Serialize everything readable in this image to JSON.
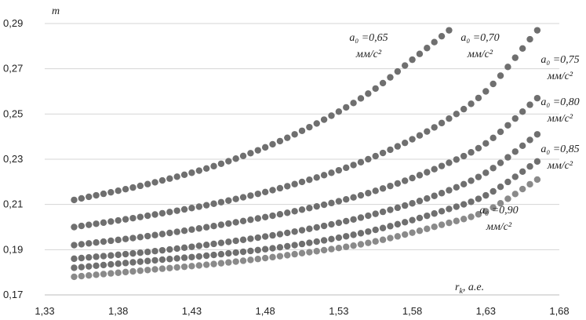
{
  "chart_data": {
    "type": "scatter",
    "title": "",
    "ylabel": "m",
    "xlabel": "r",
    "xlabel_sub": "k",
    "xlabel_suffix": ", a.e.",
    "xlim": [
      1.33,
      1.68
    ],
    "ylim": [
      0.17,
      0.29
    ],
    "x_ticks": [
      "1,33",
      "1,38",
      "1,43",
      "1,48",
      "1,53",
      "1,58",
      "1,63",
      "1,68"
    ],
    "y_ticks": [
      "0,17",
      "0,19",
      "0,21",
      "0,23",
      "0,25",
      "0,27",
      "0,29"
    ],
    "grid": "horizontal",
    "x_step": 0.005,
    "series": [
      {
        "name_lines": [
          "a₀ =0,65",
          "мм/с²"
        ],
        "color": "#6f6f6f",
        "x_range": [
          1.35,
          1.605
        ],
        "points": [
          [
            1.35,
            0.212
          ],
          [
            1.4,
            0.219
          ],
          [
            1.45,
            0.228
          ],
          [
            1.5,
            0.241
          ],
          [
            1.55,
            0.259
          ],
          [
            1.58,
            0.274
          ],
          [
            1.605,
            0.287
          ]
        ]
      },
      {
        "name_lines": [
          "a₀ =0,70",
          "мм/с²"
        ],
        "color": "#6f6f6f",
        "x_range": [
          1.35,
          1.665
        ],
        "points": [
          [
            1.35,
            0.2
          ],
          [
            1.4,
            0.205
          ],
          [
            1.45,
            0.211
          ],
          [
            1.5,
            0.219
          ],
          [
            1.55,
            0.23
          ],
          [
            1.6,
            0.246
          ],
          [
            1.63,
            0.26
          ],
          [
            1.665,
            0.287
          ]
        ]
      },
      {
        "name_lines": [
          "a₀ =0,75",
          "мм/с²"
        ],
        "color": "#6f6f6f",
        "x_range": [
          1.35,
          1.665
        ],
        "points": [
          [
            1.35,
            0.192
          ],
          [
            1.4,
            0.196
          ],
          [
            1.45,
            0.201
          ],
          [
            1.5,
            0.207
          ],
          [
            1.55,
            0.215
          ],
          [
            1.6,
            0.227
          ],
          [
            1.63,
            0.237
          ],
          [
            1.665,
            0.257
          ]
        ]
      },
      {
        "name_lines": [
          "a₀ =0,80",
          "мм/с²"
        ],
        "color": "#6f6f6f",
        "x_range": [
          1.35,
          1.665
        ],
        "points": [
          [
            1.35,
            0.186
          ],
          [
            1.4,
            0.189
          ],
          [
            1.45,
            0.193
          ],
          [
            1.5,
            0.198
          ],
          [
            1.55,
            0.205
          ],
          [
            1.6,
            0.215
          ],
          [
            1.63,
            0.224
          ],
          [
            1.665,
            0.241
          ]
        ]
      },
      {
        "name_lines": [
          "a₀ =0,85",
          "мм/с²"
        ],
        "color": "#6f6f6f",
        "x_range": [
          1.35,
          1.665
        ],
        "points": [
          [
            1.35,
            0.182
          ],
          [
            1.4,
            0.185
          ],
          [
            1.45,
            0.188
          ],
          [
            1.5,
            0.192
          ],
          [
            1.55,
            0.198
          ],
          [
            1.6,
            0.207
          ],
          [
            1.63,
            0.214
          ],
          [
            1.665,
            0.229
          ]
        ]
      },
      {
        "name_lines": [
          "a₀ =0,90",
          "мм/с²"
        ],
        "color": "#8a8a8a",
        "x_range": [
          1.35,
          1.665
        ],
        "points": [
          [
            1.35,
            0.178
          ],
          [
            1.4,
            0.181
          ],
          [
            1.45,
            0.184
          ],
          [
            1.5,
            0.188
          ],
          [
            1.55,
            0.193
          ],
          [
            1.6,
            0.201
          ],
          [
            1.63,
            0.207
          ],
          [
            1.665,
            0.221
          ]
        ]
      }
    ]
  }
}
